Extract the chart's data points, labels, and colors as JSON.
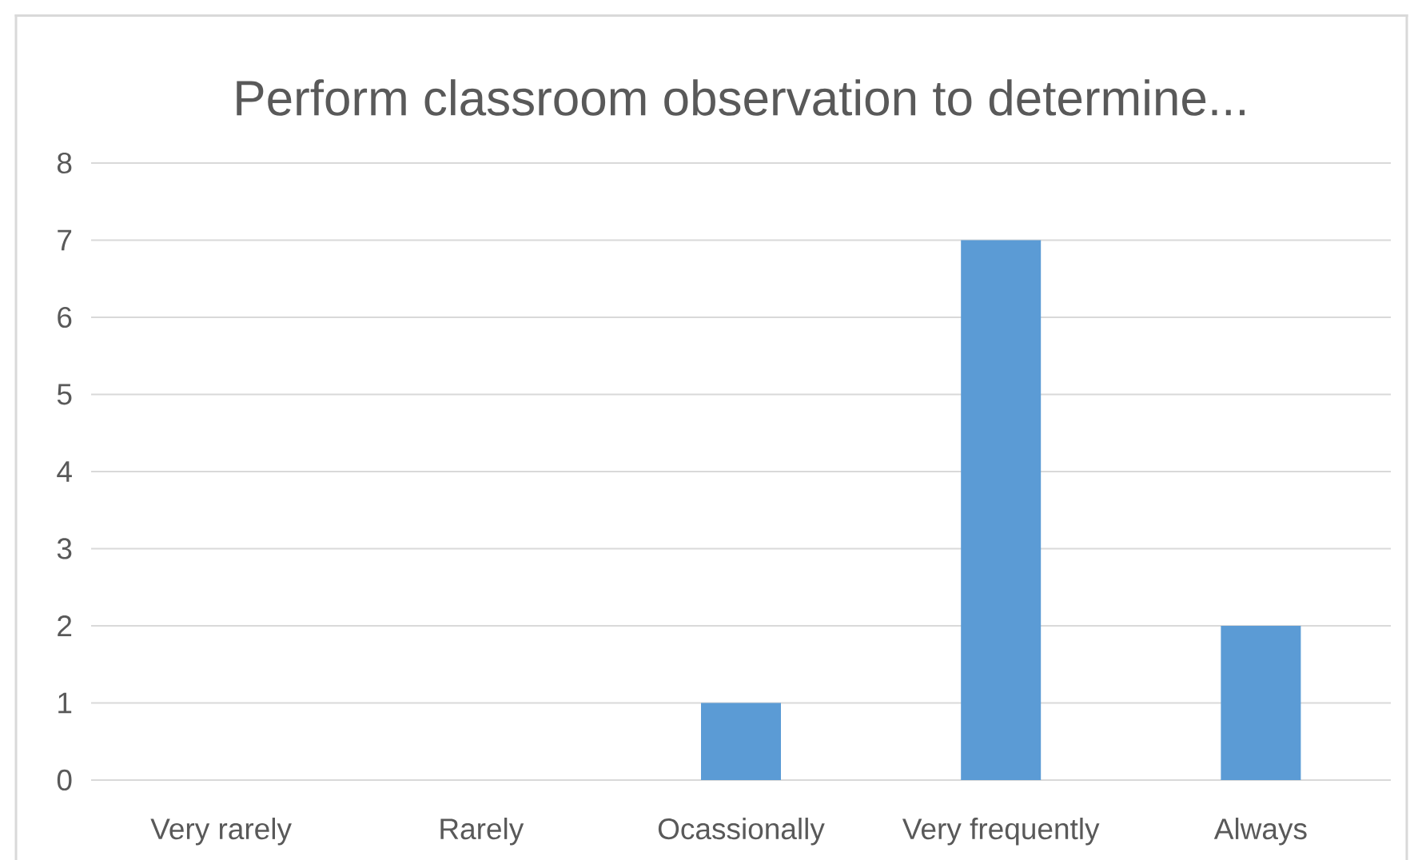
{
  "chart_data": {
    "type": "bar",
    "title": "Perform classroom observation to determine...",
    "categories": [
      "Very rarely",
      "Rarely",
      "Ocassionally",
      "Very frequently",
      "Always"
    ],
    "values": [
      0,
      0,
      1,
      7,
      2
    ],
    "color": "#5b9bd5",
    "ylim": [
      0,
      8
    ],
    "yticks": [
      0,
      1,
      2,
      3,
      4,
      5,
      6,
      7,
      8
    ],
    "grid": "y"
  }
}
